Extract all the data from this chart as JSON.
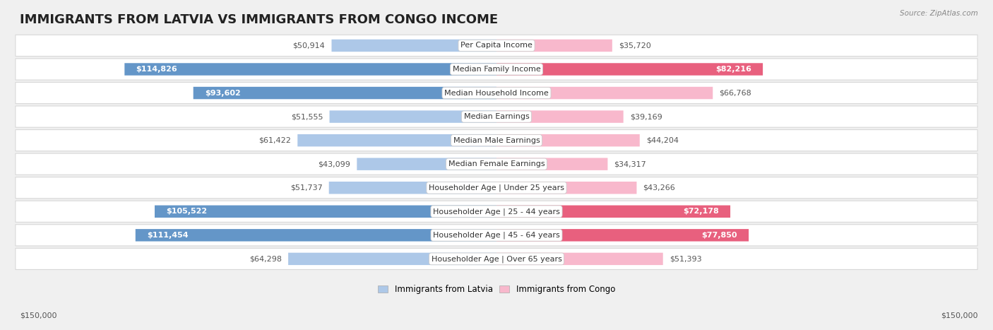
{
  "title": "IMMIGRANTS FROM LATVIA VS IMMIGRANTS FROM CONGO INCOME",
  "source": "Source: ZipAtlas.com",
  "categories": [
    "Per Capita Income",
    "Median Family Income",
    "Median Household Income",
    "Median Earnings",
    "Median Male Earnings",
    "Median Female Earnings",
    "Householder Age | Under 25 years",
    "Householder Age | 25 - 44 years",
    "Householder Age | 45 - 64 years",
    "Householder Age | Over 65 years"
  ],
  "latvia_values": [
    50914,
    114826,
    93602,
    51555,
    61422,
    43099,
    51737,
    105522,
    111454,
    64298
  ],
  "congo_values": [
    35720,
    82216,
    66768,
    39169,
    44204,
    34317,
    43266,
    72178,
    77850,
    51393
  ],
  "latvia_color_light": "#adc8e8",
  "latvia_color_dark": "#6496c8",
  "congo_color_light": "#f8b8cc",
  "congo_color_dark": "#e8607e",
  "max_value": 150000,
  "ylabel_left": "$150,000",
  "ylabel_right": "$150,000",
  "legend_latvia": "Immigrants from Latvia",
  "legend_congo": "Immigrants from Congo",
  "background_color": "#f0f0f0",
  "row_bg_color": "#ffffff",
  "row_border_color": "#d8d8d8",
  "title_fontsize": 13,
  "label_fontsize": 8,
  "value_fontsize": 8,
  "large_bar_threshold": 70000
}
